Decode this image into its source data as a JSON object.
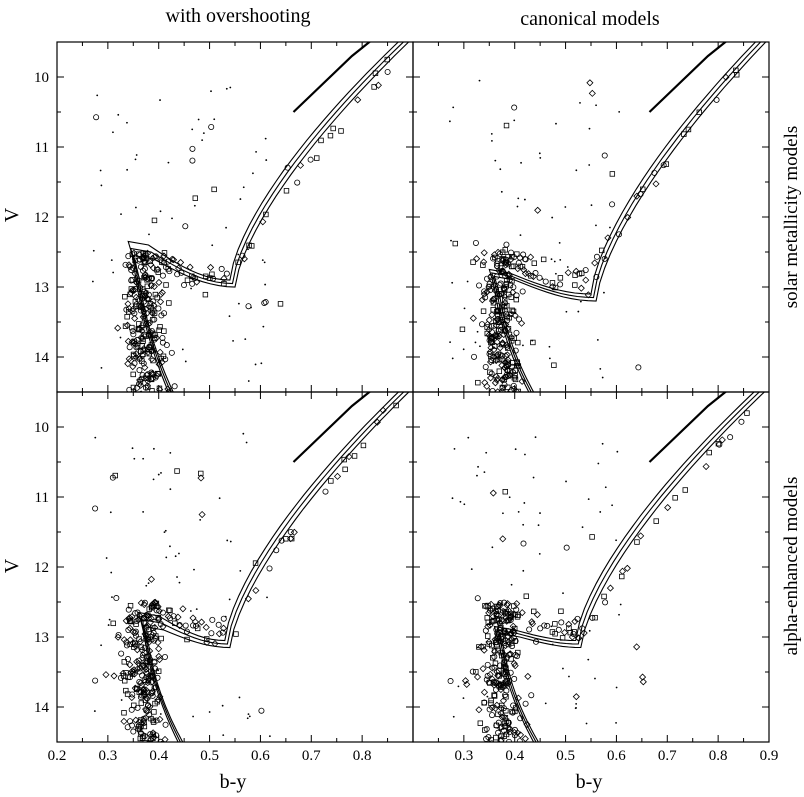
{
  "figure": {
    "column_titles": [
      "with overshooting",
      "canonical models"
    ],
    "row_titles": [
      "solar metallicity models",
      "alpha-enhanced models"
    ],
    "xlabel": "b-y",
    "ylabel": "V"
  },
  "chart_data": [
    {
      "type": "scatter",
      "panel": "top-left",
      "title": "with overshooting",
      "row_label": "solar metallicity models",
      "xlabel": "",
      "ylabel": "V",
      "xlim": [
        0.2,
        0.9
      ],
      "ylim": [
        14.5,
        9.5
      ],
      "y_inverted": true,
      "yticks": [
        10,
        11,
        12,
        13,
        14
      ],
      "xticks": [],
      "grid": false,
      "series": [
        {
          "kind": "isochrones",
          "count": 3,
          "turnoff_x": 0.34,
          "turnoff_y": [
            12.35,
            12.45,
            12.55
          ],
          "hook_x": 0.54,
          "hook_y": 12.95
        },
        {
          "kind": "stars"
        }
      ]
    },
    {
      "type": "scatter",
      "panel": "top-right",
      "title": "canonical models",
      "row_label": "solar metallicity models",
      "xlabel": "",
      "ylabel": "",
      "xlim": [
        0.2,
        0.9
      ],
      "ylim": [
        14.5,
        9.5
      ],
      "y_inverted": true,
      "yticks": [],
      "xticks": [],
      "grid": false,
      "series": [
        {
          "kind": "isochrones",
          "count": 3,
          "turnoff_x": 0.35,
          "turnoff_y": [
            12.75,
            12.8,
            12.85
          ],
          "hook_x": 0.55,
          "hook_y": 13.15
        },
        {
          "kind": "stars"
        }
      ]
    },
    {
      "type": "scatter",
      "panel": "bottom-left",
      "title": "",
      "row_label": "alpha-enhanced models",
      "xlabel": "b-y",
      "ylabel": "V",
      "xlim": [
        0.2,
        0.9
      ],
      "ylim": [
        14.5,
        9.5
      ],
      "y_inverted": true,
      "yticks": [
        10,
        11,
        12,
        13,
        14
      ],
      "xticks": [
        0.2,
        0.3,
        0.4,
        0.5,
        0.6,
        0.7,
        0.8
      ],
      "grid": false,
      "series": [
        {
          "kind": "isochrones",
          "count": 3,
          "turnoff_x": 0.36,
          "turnoff_y": [
            12.65,
            12.75,
            12.85
          ],
          "hook_x": 0.53,
          "hook_y": 13.1
        },
        {
          "kind": "stars"
        }
      ]
    },
    {
      "type": "scatter",
      "panel": "bottom-right",
      "title": "",
      "row_label": "alpha-enhanced models",
      "xlabel": "b-y",
      "ylabel": "",
      "xlim": [
        0.2,
        0.9
      ],
      "ylim": [
        14.5,
        9.5
      ],
      "y_inverted": true,
      "yticks": [],
      "xticks": [
        0.3,
        0.4,
        0.5,
        0.6,
        0.7,
        0.8,
        0.9
      ],
      "grid": false,
      "series": [
        {
          "kind": "isochrones",
          "count": 3,
          "turnoff_x": 0.36,
          "turnoff_y": [
            12.85,
            12.9,
            12.95
          ],
          "hook_x": 0.52,
          "hook_y": 13.1
        },
        {
          "kind": "stars"
        }
      ]
    }
  ]
}
